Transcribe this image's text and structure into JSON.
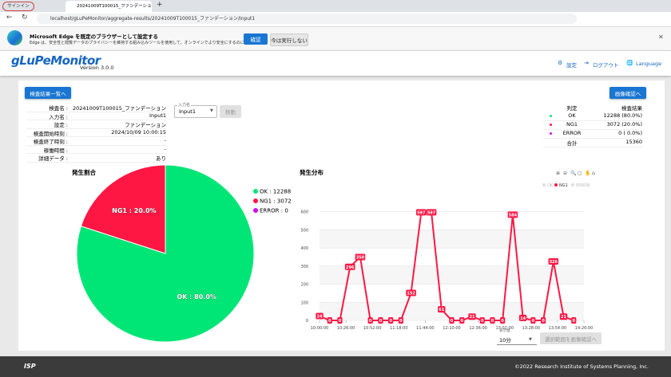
{
  "browser": {
    "signin": "サインイン",
    "tab_title": "20241009T100015_ファンデーション",
    "url": "localhost/gLuPeMonitor/aggregate-results/20241009T100015_ファンデーション/Input1"
  },
  "banner": {
    "title": "Microsoft Edge を既定のブラウザーとして設定する",
    "text": "Edge は、安全性と閲覧データのプライバシーを維持する組み込みツールを使用して、オンラインでより安全にするのに役立ちます",
    "confirm": "確認",
    "dismiss": "今は実行しない"
  },
  "header": {
    "logo": "gLuPeMonitor",
    "version": "Version 3.0.0",
    "settings": "設定",
    "logout": "ログアウト",
    "language": "Language"
  },
  "buttons": {
    "back": "検査結果一覧へ",
    "images": "画像確認へ",
    "move": "移動",
    "range_images": "選択範囲を画像確認へ"
  },
  "info": [
    [
      "検査名 :",
      "20241009T100015_ファンデーション"
    ],
    [
      "入力名 :",
      "Input1"
    ],
    [
      "設定 :",
      "ファンデーション"
    ],
    [
      "検査開始時刻 :",
      "2024/10/09 10:00:15"
    ],
    [
      "検査終了時刻 :",
      "-"
    ],
    [
      "稼働時間 :",
      "-"
    ],
    [
      "詳細データ :",
      "あり"
    ]
  ],
  "input_select": {
    "label": "入力名",
    "value": "Input1"
  },
  "results": {
    "headers": [
      "判定",
      "検査結果"
    ],
    "rows": [
      [
        "OK",
        "12288 (80.0%)"
      ],
      [
        "NG1",
        "3072 (20.0%)"
      ],
      [
        "ERROR",
        "0 ( 0.0%)"
      ],
      [
        "合計",
        "15360"
      ]
    ]
  },
  "chart_data": [
    {
      "type": "pie",
      "title": "発生割合",
      "categories": [
        "OK",
        "NG1",
        "ERROR"
      ],
      "values": [
        12288,
        3072,
        0
      ],
      "colors": [
        "#00e676",
        "#ff1744",
        "#d500f9"
      ],
      "value_labels": [
        "OK : 80.0%",
        "NG1 : 20.0%",
        null
      ],
      "legend": [
        "OK : 12288",
        "NG1 : 3072",
        "ERROR : 0"
      ]
    },
    {
      "type": "line",
      "title": "発生分布",
      "x": [
        "10:00:00",
        "10:10:00",
        "10:20:00",
        "10:30:00",
        "10:40:00",
        "10:50:00",
        "11:00:00",
        "11:10:00",
        "11:20:00",
        "11:30:00",
        "11:40:00",
        "11:50:00",
        "12:00:00",
        "12:10:00",
        "12:20:00",
        "12:30:00",
        "12:40:00",
        "12:50:00",
        "13:00:00",
        "13:10:00",
        "13:20:00",
        "13:30:00",
        "13:40:00",
        "13:50:00",
        "14:00:00",
        "14:10:00"
      ],
      "series": [
        {
          "name": "NG1",
          "color": "#ff1744",
          "values": [
            24,
            0,
            0,
            296,
            350,
            0,
            0,
            0,
            0,
            152,
            597,
            597,
            61,
            0,
            0,
            21,
            0,
            0,
            0,
            584,
            14,
            0,
            0,
            326,
            21,
            0
          ]
        }
      ],
      "legend": [
        {
          "name": "OK",
          "color": "#00e676",
          "hidden": true
        },
        {
          "name": "NG1",
          "color": "#ff1744",
          "hidden": false
        },
        {
          "name": "ERROR",
          "color": "#d500f9",
          "hidden": true
        }
      ],
      "xlim": [
        "10:00:00",
        "14:20:00"
      ],
      "xticks": [
        "10:00:00",
        "10:26:00",
        "10:52:00",
        "11:18:00",
        "11:44:00",
        "12:10:00",
        "12:36:00",
        "13:02:00",
        "13:28:00",
        "13:54:00",
        "14:20:00"
      ],
      "ylim": [
        0,
        700
      ],
      "yticks": [
        0,
        100,
        200,
        300,
        400,
        500,
        600
      ],
      "grid": true,
      "width_label": "表示幅",
      "width_value": "10分"
    }
  ],
  "footer": {
    "logo": "ISP",
    "copyright": "©2022 Research Institute of Systems Planning, Inc."
  }
}
